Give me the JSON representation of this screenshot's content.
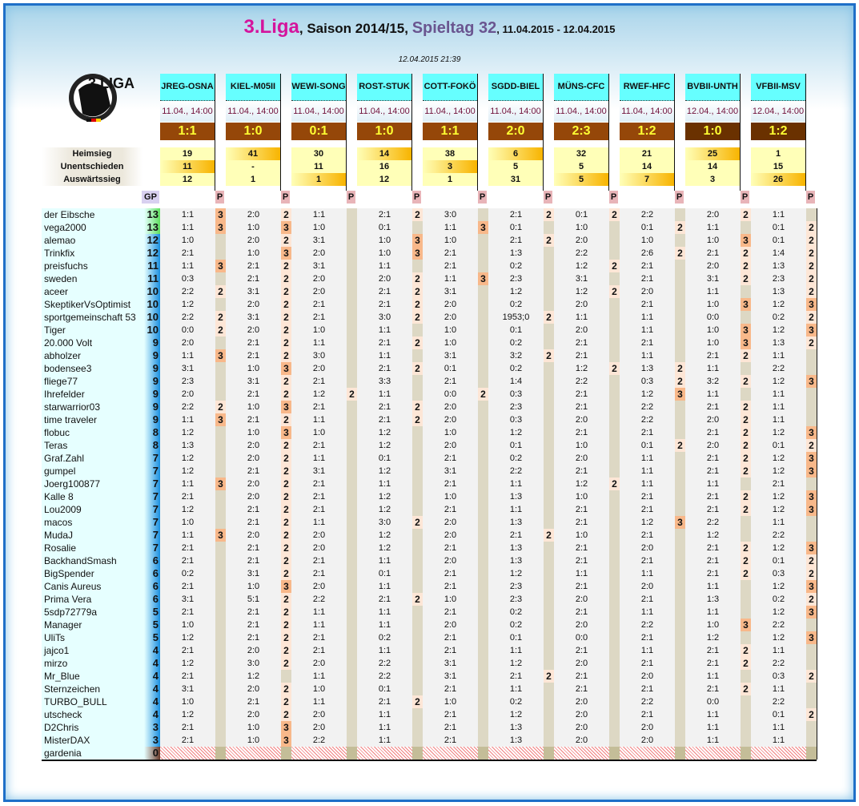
{
  "title": {
    "league": "3.Liga",
    "season": ", Saison 2014/15, ",
    "matchday": "Spieltag 32",
    "range": ", 11.04.2015 - 12.04.2015"
  },
  "timestamp": "12.04.2015 21:39",
  "logo_text": "3.LIGA",
  "stat_labels": [
    "Heimsieg",
    "Unentschieden",
    "Auswärtssieg"
  ],
  "gp_label": "GP",
  "p_label": "P",
  "games": [
    {
      "team": "JREG-OSNA",
      "date": "11.04., 14:00",
      "result": "1:1",
      "stats": [
        "19",
        "11",
        "12"
      ],
      "outcome": 1
    },
    {
      "team": "KIEL-M05II",
      "date": "11.04., 14:00",
      "result": "1:0",
      "stats": [
        "41",
        "-",
        "1"
      ],
      "outcome": 0
    },
    {
      "team": "WEWI-SONG",
      "date": "11.04., 14:00",
      "result": "0:1",
      "stats": [
        "30",
        "11",
        "1"
      ],
      "outcome": 2
    },
    {
      "team": "ROST-STUK",
      "date": "11.04., 14:00",
      "result": "1:0",
      "stats": [
        "14",
        "16",
        "12"
      ],
      "outcome": 0
    },
    {
      "team": "COTT-FOKÖ",
      "date": "11.04., 14:00",
      "result": "1:1",
      "stats": [
        "38",
        "3",
        "1"
      ],
      "outcome": 1
    },
    {
      "team": "SGDD-BIEL",
      "date": "11.04., 14:00",
      "result": "2:0",
      "stats": [
        "6",
        "5",
        "31"
      ],
      "outcome": 0
    },
    {
      "team": "MÜNS-CFC",
      "date": "11.04., 14:00",
      "result": "2:3",
      "stats": [
        "32",
        "5",
        "5"
      ],
      "outcome": 2
    },
    {
      "team": "RWEF-HFC",
      "date": "11.04., 14:00",
      "result": "1:2",
      "stats": [
        "21",
        "14",
        "7"
      ],
      "outcome": 2
    },
    {
      "team": "BVBII-UNTH",
      "date": "12.04., 14:00",
      "result": "1:0",
      "stats": [
        "25",
        "14",
        "3"
      ],
      "outcome": 0,
      "dark": true
    },
    {
      "team": "VFBII-MSV",
      "date": "12.04., 14:00",
      "result": "1:2",
      "stats": [
        "1",
        "15",
        "26"
      ],
      "outcome": 2,
      "dark": true
    }
  ],
  "rows": [
    [
      "der Eibsche",
      "13",
      "1:1|3 2:0|2 1:1| 2:1|2 3:0| 2:1|2 0:1|2 2:2| 2:0|2 1:1|"
    ],
    [
      "vega2000",
      "13",
      "1:1|3 1:0|3 1:0| 0:1| 1:1|3 0:1| 1:0| 0:1|2 1:1| 0:1|2"
    ],
    [
      "alemao",
      "12",
      "1:0| 2:0|2 3:1| 1:0|3 1:0| 2:1|2 2:0| 1:0| 1:0|3 0:1|2"
    ],
    [
      "Trinkfix",
      "12",
      "2:1| 1:0|3 2:0| 1:0|3 2:1| 1:3| 2:2| 2:6|2 2:1|2 1:4|2"
    ],
    [
      "preisfuchs",
      "11",
      "1:1|3 2:1|2 3:1| 1:1| 2:1| 0:2| 1:2|2 2:1| 2:0|2 1:3|2"
    ],
    [
      "sweden",
      "11",
      "0:3| 2:1|2 2:0| 2:0|2 1:1|3 2:3| 3:1| 2:1| 3:1|2 2:3|2"
    ],
    [
      "aceer",
      "10",
      "2:2|2 3:1|2 2:0| 2:1|2 3:1| 1:2| 1:2|2 2:0| 1:1| 1:3|2"
    ],
    [
      "SkeptikerVsOptimist",
      "10",
      "1:2| 2:0|2 2:1| 2:1|2 2:0| 0:2| 2:0| 2:1| 1:0|3 1:2|3"
    ],
    [
      "sportgemeinschaft 53",
      "10",
      "2:2|2 3:1|2 2:1| 3:0|2 2:0| 1953;0|2 1:1| 1:1| 0:0| 0:2|2"
    ],
    [
      "Tiger",
      "10",
      "0:0|2 2:0|2 1:0| 1:1| 1:0| 0:1| 2:0| 1:1| 1:0|3 1:2|3"
    ],
    [
      "20.000 Volt",
      "9",
      "2:0| 2:1|2 1:1| 2:1|2 1:0| 0:2| 2:1| 2:1| 1:0|3 1:3|2"
    ],
    [
      "abholzer",
      "9",
      "1:1|3 2:1|2 3:0| 1:1| 3:1| 3:2|2 2:1| 1:1| 2:1|2 1:1|"
    ],
    [
      "bodensee3",
      "9",
      "3:1| 1:0|3 2:0| 2:1|2 0:1| 0:2| 1:2|2 1:3|2 1:1| 2:2|"
    ],
    [
      "fliege77",
      "9",
      "2:3| 3:1|2 2:1| 3:3| 2:1| 1:4| 2:2| 0:3|2 3:2|2 1:2|3"
    ],
    [
      "Ihrefelder",
      "9",
      "2:0| 2:1|2 1:2|2 1:1| 0:0|2 0:3| 2:1| 1:2|3 1:1| 1:1|"
    ],
    [
      "starwarrior03",
      "9",
      "2:2|2 1:0|3 2:1| 2:1|2 2:0| 2:3| 2:1| 2:2| 2:1|2 1:1|"
    ],
    [
      "time traveler",
      "9",
      "1:1|3 2:1|2 1:1| 2:1|2 2:0| 0:3| 2:0| 2:2| 2:0|2 1:1|"
    ],
    [
      "flobuc",
      "8",
      "1:2| 1:0|3 1:0| 1:2| 1:0| 1:2| 2:1| 2:1| 2:1|2 1:2|3"
    ],
    [
      "Teras",
      "8",
      "1:3| 2:0|2 2:1| 1:2| 2:0| 0:1| 1:0| 0:1|2 2:0|2 0:1|2"
    ],
    [
      "Graf.Zahl",
      "7",
      "1:2| 2:0|2 1:1| 0:1| 2:1| 0:2| 2:0| 1:1| 2:1|2 1:2|3"
    ],
    [
      "gumpel",
      "7",
      "1:2| 2:1|2 3:1| 1:2| 3:1| 2:2| 2:1| 1:1| 2:1|2 1:2|3"
    ],
    [
      "Joerg100877",
      "7",
      "1:1|3 2:0|2 2:1| 1:1| 2:1| 1:1| 1:2|2 1:1| 1:1| 2:1|"
    ],
    [
      "Kalle 8",
      "7",
      "2:1| 2:0|2 2:1| 1:2| 1:0| 1:3| 1:0| 2:1| 2:1|2 1:2|3"
    ],
    [
      "Lou2009",
      "7",
      "1:2| 2:1|2 2:1| 1:2| 2:1| 1:1| 2:1| 2:1| 2:1|2 1:2|3"
    ],
    [
      "macos",
      "7",
      "1:0| 2:1|2 1:1| 3:0|2 2:0| 1:3| 2:1| 1:2|3 2:2| 1:1|"
    ],
    [
      "MudaJ",
      "7",
      "1:1|3 2:0|2 2:0| 1:2| 2:0| 2:1|2 1:0| 2:1| 1:2| 2:2|"
    ],
    [
      "Rosalie",
      "7",
      "2:1| 2:1|2 2:0| 1:2| 2:1| 1:3| 2:1| 2:0| 2:1|2 1:2|3"
    ],
    [
      "BackhandSmash",
      "6",
      "2:1| 2:1|2 2:1| 1:1| 2:0| 1:3| 2:1| 2:1| 2:1|2 0:1|2"
    ],
    [
      "BigSpender",
      "6",
      "0:2| 3:1|2 2:1| 0:1| 2:1| 1:2| 1:1| 1:1| 2:1|2 0:3|2"
    ],
    [
      "Canis Aureus",
      "6",
      "2:1| 1:0|3 2:0| 1:1| 2:1| 2:3| 2:1| 2:0| 1:1| 1:2|3"
    ],
    [
      "Prima Vera",
      "6",
      "3:1| 5:1|2 2:2| 2:1|2 1:0| 2:3| 2:0| 2:1| 1:3| 0:2|2"
    ],
    [
      "5sdp72779a",
      "5",
      "2:1| 2:1|2 1:1| 1:1| 2:1| 0:2| 2:1| 1:1| 1:1| 1:2|3"
    ],
    [
      "Manager",
      "5",
      "1:0| 2:1|2 1:1| 1:1| 2:0| 0:2| 2:0| 2:2| 1:0|3 2:2|"
    ],
    [
      "UliTs",
      "5",
      "1:2| 2:1|2 2:1| 0:2| 2:1| 0:1| 0:0| 2:1| 1:2| 1:2|3"
    ],
    [
      "jajco1",
      "4",
      "2:1| 2:0|2 2:1| 1:1| 2:1| 1:1| 2:1| 1:1| 2:1|2 1:1|"
    ],
    [
      "mirzo",
      "4",
      "1:2| 3:0|2 2:0| 2:2| 3:1| 1:2| 2:0| 2:1| 2:1|2 2:2|"
    ],
    [
      "Mr_Blue",
      "4",
      "2:1| 1:2| 1:1| 2:2| 3:1| 2:1|2 2:1| 2:0| 1:1| 0:3|2"
    ],
    [
      "Sternzeichen",
      "4",
      "3:1| 2:0|2 1:0| 0:1| 2:1| 1:1| 2:1| 2:1| 2:1|2 1:1|"
    ],
    [
      "TURBO_BULL",
      "4",
      "1:0| 2:1|2 1:1| 2:1|2 1:0| 0:2| 2:0| 2:2| 0:0| 2:2|"
    ],
    [
      "utscheck",
      "4",
      "1:2| 2:0|2 2:0| 1:1| 2:1| 1:2| 2:0| 2:1| 1:1| 0:1|2"
    ],
    [
      "D2Chris",
      "3",
      "2:1| 1:0|3 2:0| 1:1| 2:1| 1:3| 2:0| 2:0| 1:1| 1:1|"
    ],
    [
      "MisterDAX",
      "3",
      "2:1| 1:0|3 2:2| 1:1| 2:1| 1:3| 2:0| 2:0| 1:1| 1:1|"
    ],
    [
      "gardenia",
      "0",
      ""
    ]
  ]
}
